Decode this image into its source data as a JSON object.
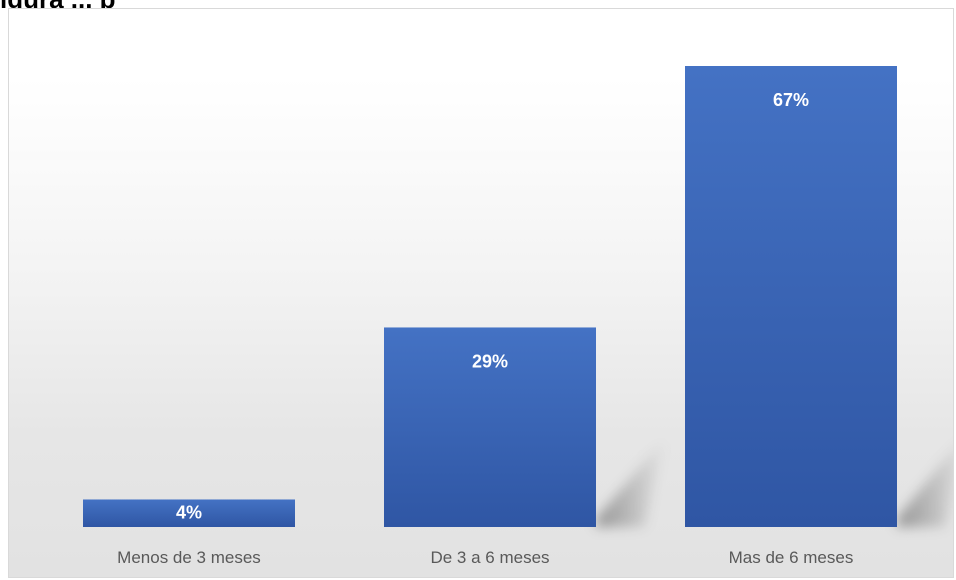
{
  "header": {
    "clipped_title": "igura ... p"
  },
  "chart_data": {
    "type": "bar",
    "categories": [
      "Menos de 3 meses",
      "De 3 a 6 meses",
      "Mas de 6 meses"
    ],
    "values": [
      4,
      29,
      67
    ],
    "data_labels": [
      "4%",
      "29%",
      "67%"
    ],
    "title": "",
    "xlabel": "",
    "ylabel": "",
    "ylim": [
      0,
      70
    ],
    "grid": false,
    "legend": "none",
    "colors": {
      "bar_top": "#4472c4",
      "bar_bottom": "#2f56a4",
      "label": "#ffffff",
      "axis_text": "#595959"
    }
  }
}
